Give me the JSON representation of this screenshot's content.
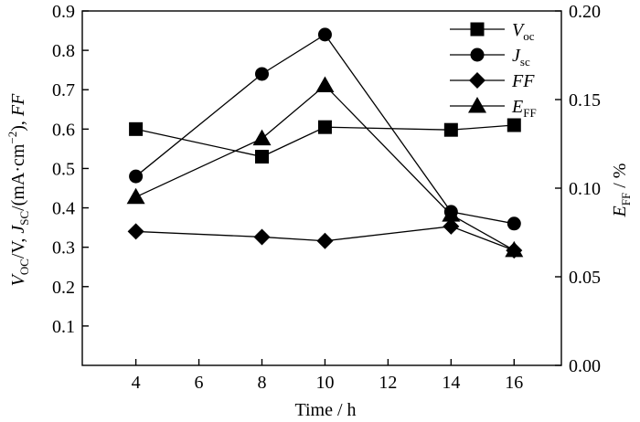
{
  "chart_data": {
    "type": "line",
    "x": [
      4,
      8,
      10,
      14,
      16
    ],
    "xlabel": "Time / h",
    "xlim": [
      2.3,
      17.5
    ],
    "xticks": [
      4,
      6,
      8,
      10,
      12,
      14,
      16
    ],
    "ylabel_left": "VOC/V, JSC/(mA·cm−2), FF",
    "ylim_left": [
      0,
      0.9
    ],
    "yticks_left": [
      "0.1",
      "0.2",
      "0.3",
      "0.4",
      "0.5",
      "0.6",
      "0.7",
      "0.8",
      "0.9"
    ],
    "ylabel_right": "EFF / %",
    "ylim_right": [
      0,
      0.2
    ],
    "yticks_right": [
      "0.00",
      "0.05",
      "0.10",
      "0.15",
      "0.20"
    ],
    "grid": false,
    "legend_position": "top-right",
    "series": [
      {
        "name": "Voc",
        "label_main": "V",
        "label_sub": "oc",
        "marker": "square",
        "axis": "left",
        "values": [
          0.6,
          0.53,
          0.605,
          0.598,
          0.61
        ]
      },
      {
        "name": "Jsc",
        "label_main": "J",
        "label_sub": "sc",
        "marker": "circle",
        "axis": "left",
        "values": [
          0.48,
          0.74,
          0.84,
          0.39,
          0.36
        ]
      },
      {
        "name": "FF",
        "label_main": "FF",
        "label_sub": "",
        "marker": "diamond",
        "axis": "left",
        "values": [
          0.34,
          0.326,
          0.316,
          0.353,
          0.292
        ]
      },
      {
        "name": "EFF",
        "label_main": "E",
        "label_sub": "FF",
        "marker": "triangle",
        "axis": "right",
        "values": [
          0.095,
          0.128,
          0.158,
          0.085,
          0.065
        ]
      }
    ]
  }
}
